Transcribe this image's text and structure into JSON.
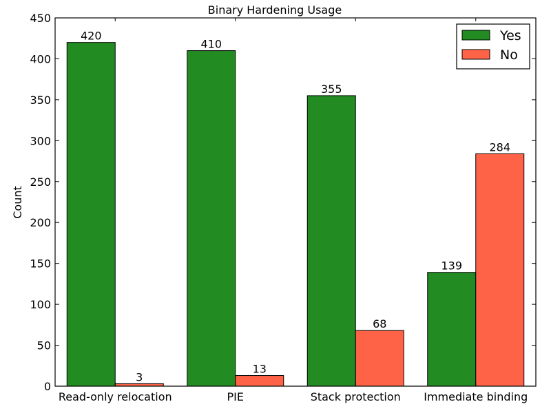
{
  "chart_data": {
    "type": "bar",
    "title": "Binary Hardening Usage",
    "xlabel": "",
    "ylabel": "Count",
    "ylim": [
      0,
      450
    ],
    "yticks": [
      0,
      50,
      100,
      150,
      200,
      250,
      300,
      350,
      400,
      450
    ],
    "categories": [
      "Read-only relocation",
      "PIE",
      "Stack protection",
      "Immediate binding"
    ],
    "series": [
      {
        "name": "Yes",
        "color": "#228B22",
        "values": [
          420,
          410,
          355,
          139
        ]
      },
      {
        "name": "No",
        "color": "#FF6347",
        "values": [
          3,
          13,
          68,
          284
        ]
      }
    ],
    "legend": "upper-right",
    "grid": false,
    "data_labels": true
  }
}
